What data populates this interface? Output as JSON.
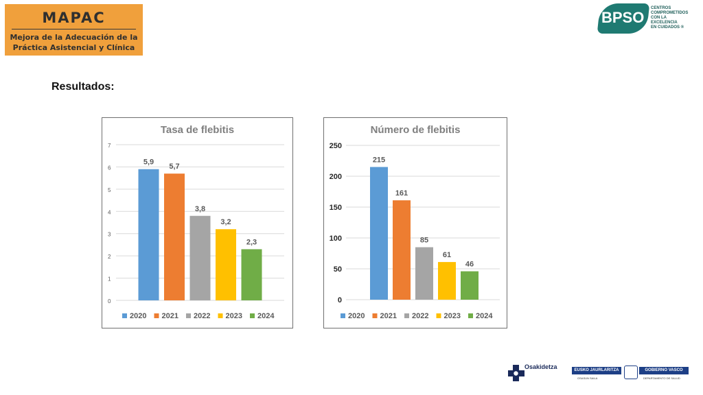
{
  "header": {
    "mapac_title": "MAPAC",
    "mapac_line1": "Mejora de la Adecuación de la",
    "mapac_line2": "Práctica Asistencial y Clínica",
    "bpso_logo": "BPSO",
    "bpso_tagline": [
      "CENTROS",
      "COMPROMETIDOS",
      "CON LA",
      "EXCELENCIA",
      "EN CUIDADOS ®"
    ]
  },
  "section_heading": "Resultados:",
  "chart_data": [
    {
      "type": "bar",
      "title": "Tasa de flebitis",
      "categories": [
        "2020",
        "2021",
        "2022",
        "2023",
        "2024"
      ],
      "values": [
        5.9,
        5.7,
        3.8,
        3.2,
        2.3
      ],
      "value_labels": [
        "5,9",
        "5,7",
        "3,8",
        "3,2",
        "2,3"
      ],
      "yticks": [
        0,
        1,
        2,
        3,
        4,
        5,
        6,
        7
      ],
      "ylim": [
        0,
        7
      ],
      "colors": [
        "#5b9bd5",
        "#ed7d31",
        "#a5a5a5",
        "#ffc000",
        "#70ad47"
      ],
      "legend": "bottom",
      "grid": true
    },
    {
      "type": "bar",
      "title": "Número de flebitis",
      "categories": [
        "2020",
        "2021",
        "2022",
        "2023",
        "2024"
      ],
      "values": [
        215,
        161,
        85,
        61,
        46
      ],
      "value_labels": [
        "215",
        "161",
        "85",
        "61",
        "46"
      ],
      "yticks": [
        0,
        50,
        100,
        150,
        200,
        250
      ],
      "ylim": [
        0,
        250
      ],
      "colors": [
        "#5b9bd5",
        "#ed7d31",
        "#a5a5a5",
        "#ffc000",
        "#70ad47"
      ],
      "legend": "bottom",
      "grid": true
    }
  ],
  "footer": {
    "osakidetza": "Osakidetza",
    "gv_left": "EUSKO JAURLARITZA",
    "gv_right": "GOBIERNO VASCO",
    "gv_left_sub": "OSASUN SAILA",
    "gv_right_sub": "DEPARTAMENTO DE SALUD"
  }
}
